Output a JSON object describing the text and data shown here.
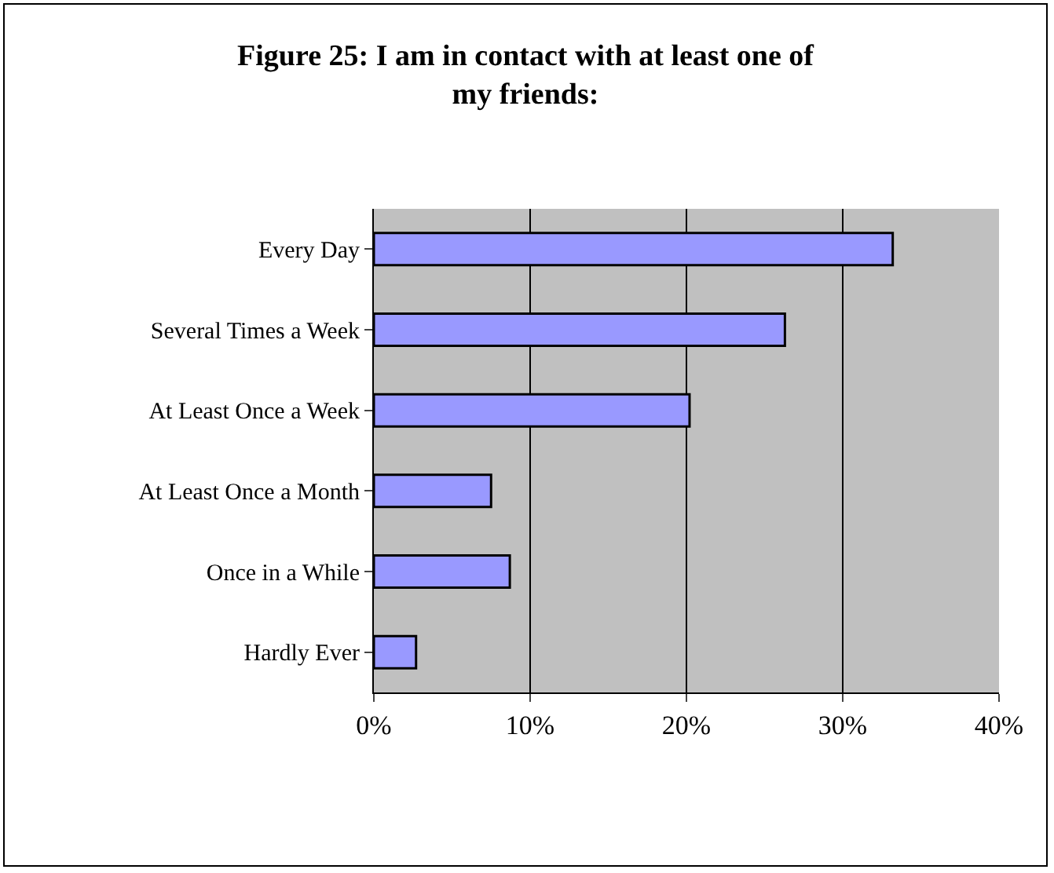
{
  "chart_data": {
    "type": "bar",
    "orientation": "horizontal",
    "title": "Figure 25: I am in contact with at least one of my friends:",
    "categories": [
      "Every Day",
      "Several Times a Week",
      "At Least Once a Week",
      "At Least Once a Month",
      "Once in a While",
      "Hardly Ever"
    ],
    "values": [
      33.2,
      26.3,
      20.2,
      7.5,
      8.7,
      2.7
    ],
    "color": "#9999ff",
    "xlim": [
      0,
      40
    ],
    "xticks": [
      {
        "value": 0,
        "label": "0%"
      },
      {
        "value": 10,
        "label": "10%"
      },
      {
        "value": 20,
        "label": "20%"
      },
      {
        "value": 30,
        "label": "30%"
      },
      {
        "value": 40,
        "label": "40%"
      }
    ],
    "grid": "x"
  }
}
